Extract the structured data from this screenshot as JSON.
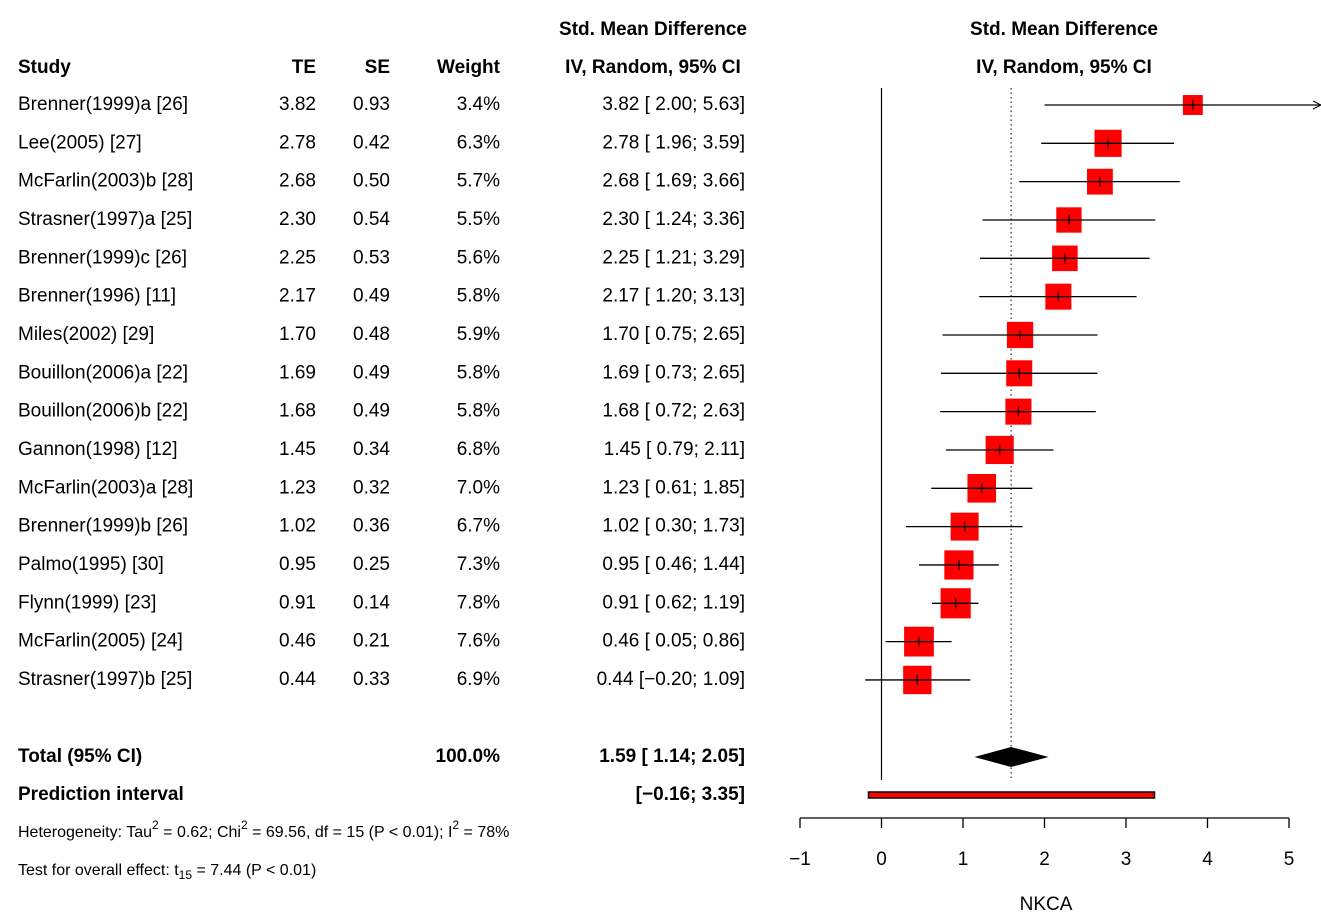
{
  "chart_data": {
    "type": "forest",
    "left_headers": {
      "line1": "Std. Mean Difference",
      "study": "Study",
      "te": "TE",
      "se": "SE",
      "weight": "Weight",
      "ci": "IV, Random, 95% CI"
    },
    "right_headers": [
      "Std. Mean Difference",
      "IV, Random, 95% CI"
    ],
    "xlabel": "NKCA",
    "xlim": [
      -1,
      5
    ],
    "xticks": [
      {
        "value": -1,
        "label": "−1"
      },
      0,
      1,
      2,
      3,
      4,
      5
    ],
    "square_color": "#ff0000",
    "studies": [
      {
        "name": "Brenner(1999)a [26]",
        "te": 3.82,
        "te_label": "3.82",
        "se": "0.93",
        "weight": 3.4,
        "weight_label": "3.4%",
        "lower": 2.0,
        "upper": 5.63,
        "ci": "3.82 [ 2.00; 5.63]"
      },
      {
        "name": "Lee(2005) [27]",
        "te": 2.78,
        "te_label": "2.78",
        "se": "0.42",
        "weight": 6.3,
        "weight_label": "6.3%",
        "lower": 1.96,
        "upper": 3.59,
        "ci": "2.78 [ 1.96; 3.59]"
      },
      {
        "name": "McFarlin(2003)b [28]",
        "te": 2.68,
        "te_label": "2.68",
        "se": "0.50",
        "weight": 5.7,
        "weight_label": "5.7%",
        "lower": 1.69,
        "upper": 3.66,
        "ci": "2.68 [ 1.69; 3.66]"
      },
      {
        "name": "Strasner(1997)a [25]",
        "te": 2.3,
        "te_label": "2.30",
        "se": "0.54",
        "weight": 5.5,
        "weight_label": "5.5%",
        "lower": 1.24,
        "upper": 3.36,
        "ci": "2.30 [ 1.24; 3.36]"
      },
      {
        "name": "Brenner(1999)c [26]",
        "te": 2.25,
        "te_label": "2.25",
        "se": "0.53",
        "weight": 5.6,
        "weight_label": "5.6%",
        "lower": 1.21,
        "upper": 3.29,
        "ci": "2.25 [ 1.21; 3.29]"
      },
      {
        "name": "Brenner(1996) [11]",
        "te": 2.17,
        "te_label": "2.17",
        "se": "0.49",
        "weight": 5.8,
        "weight_label": "5.8%",
        "lower": 1.2,
        "upper": 3.13,
        "ci": "2.17 [ 1.20; 3.13]"
      },
      {
        "name": "Miles(2002) [29]",
        "te": 1.7,
        "te_label": "1.70",
        "se": "0.48",
        "weight": 5.9,
        "weight_label": "5.9%",
        "lower": 0.75,
        "upper": 2.65,
        "ci": "1.70 [ 0.75; 2.65]"
      },
      {
        "name": "Bouillon(2006)a [22]",
        "te": 1.69,
        "te_label": "1.69",
        "se": "0.49",
        "weight": 5.8,
        "weight_label": "5.8%",
        "lower": 0.73,
        "upper": 2.65,
        "ci": "1.69 [ 0.73; 2.65]"
      },
      {
        "name": "Bouillon(2006)b [22]",
        "te": 1.68,
        "te_label": "1.68",
        "se": "0.49",
        "weight": 5.8,
        "weight_label": "5.8%",
        "lower": 0.72,
        "upper": 2.63,
        "ci": "1.68 [ 0.72; 2.63]"
      },
      {
        "name": "Gannon(1998) [12]",
        "te": 1.45,
        "te_label": "1.45",
        "se": "0.34",
        "weight": 6.8,
        "weight_label": "6.8%",
        "lower": 0.79,
        "upper": 2.11,
        "ci": "1.45 [ 0.79; 2.11]"
      },
      {
        "name": "McFarlin(2003)a [28]",
        "te": 1.23,
        "te_label": "1.23",
        "se": "0.32",
        "weight": 7.0,
        "weight_label": "7.0%",
        "lower": 0.61,
        "upper": 1.85,
        "ci": "1.23 [ 0.61; 1.85]"
      },
      {
        "name": "Brenner(1999)b [26]",
        "te": 1.02,
        "te_label": "1.02",
        "se": "0.36",
        "weight": 6.7,
        "weight_label": "6.7%",
        "lower": 0.3,
        "upper": 1.73,
        "ci": "1.02 [ 0.30; 1.73]"
      },
      {
        "name": "Palmo(1995) [30]",
        "te": 0.95,
        "te_label": "0.95",
        "se": "0.25",
        "weight": 7.3,
        "weight_label": "7.3%",
        "lower": 0.46,
        "upper": 1.44,
        "ci": "0.95 [ 0.46; 1.44]"
      },
      {
        "name": "Flynn(1999) [23]",
        "te": 0.91,
        "te_label": "0.91",
        "se": "0.14",
        "weight": 7.8,
        "weight_label": "7.8%",
        "lower": 0.62,
        "upper": 1.19,
        "ci": "0.91 [ 0.62; 1.19]"
      },
      {
        "name": "McFarlin(2005) [24]",
        "te": 0.46,
        "te_label": "0.46",
        "se": "0.21",
        "weight": 7.6,
        "weight_label": "7.6%",
        "lower": 0.05,
        "upper": 0.86,
        "ci": "0.46 [ 0.05; 0.86]"
      },
      {
        "name": "Strasner(1997)b [25]",
        "te": 0.44,
        "te_label": "0.44",
        "se": "0.33",
        "weight": 6.9,
        "weight_label": "6.9%",
        "lower": -0.2,
        "upper": 1.09,
        "ci": "0.44 [−0.20; 1.09]"
      }
    ],
    "total": {
      "label": "Total (95% CI)",
      "weight": "100.0%",
      "te": 1.59,
      "lower": 1.14,
      "upper": 2.05,
      "ci": "1.59 [ 1.14; 2.05]"
    },
    "prediction": {
      "label": "Prediction interval",
      "lower": -0.16,
      "upper": 3.35,
      "ci": "[−0.16; 3.35]"
    },
    "heterogeneity": [
      "Heterogeneity: Tau",
      "2",
      " = 0.62; Chi",
      "2",
      " = 69.56, df = 15 (P < 0.01); I",
      "2",
      " = 78%"
    ],
    "overall_effect": [
      "Test for overall effect: t",
      "15",
      " = 7.44 (P < 0.01)"
    ]
  }
}
